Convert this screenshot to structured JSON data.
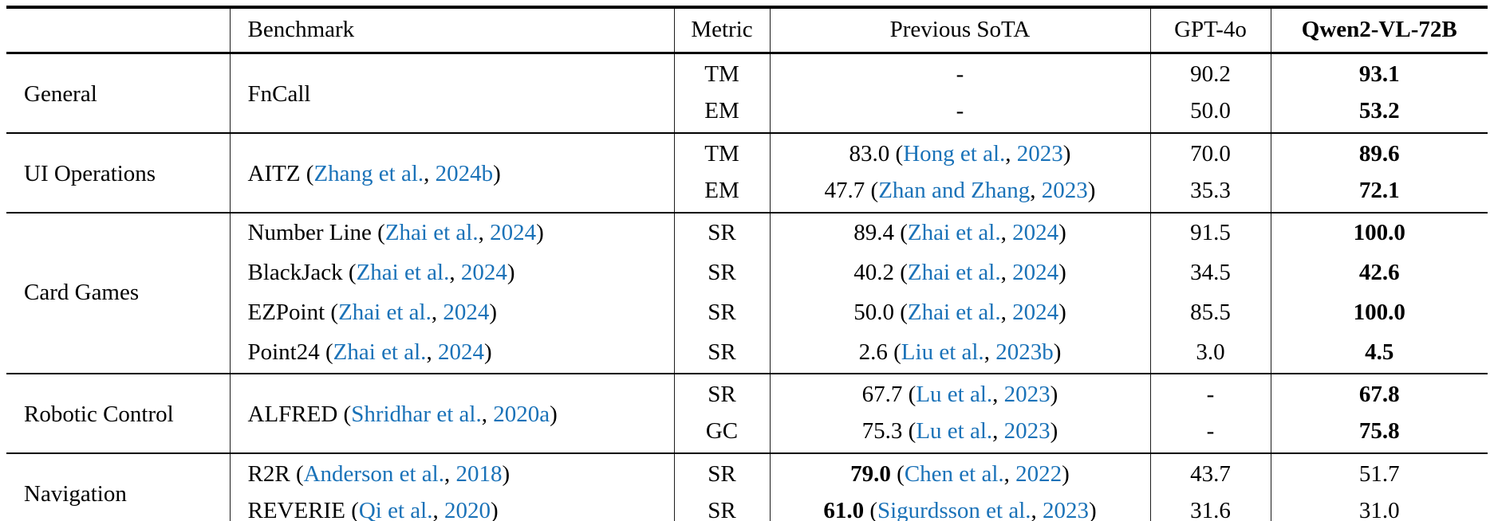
{
  "header": {
    "category": "",
    "benchmark": "Benchmark",
    "metric": "Metric",
    "prev_sota": "Previous SoTA",
    "gpt4o": "GPT-4o",
    "qwen": "Qwen2-VL-72B"
  },
  "colors": {
    "link_blue": "#1a72b8",
    "text": "#000000",
    "rule": "#000000"
  },
  "sections": [
    {
      "category": "General",
      "rows": [
        {
          "bench": {
            "pre": "FnCall"
          },
          "metric": "TM",
          "prev": {
            "pre": "-"
          },
          "gpt": "90.2",
          "qwen": "93.1"
        },
        {
          "metric": "EM",
          "prev": {
            "pre": "-"
          },
          "gpt": "50.0",
          "qwen": "53.2"
        }
      ]
    },
    {
      "category": "UI Operations",
      "rows": [
        {
          "bench": {
            "pre": "AITZ ",
            "open": "(",
            "authors": "Zhang et al.",
            "sep": ", ",
            "year": "2024b",
            "close": ")"
          },
          "metric": "TM",
          "prev": {
            "pre": "83.0 ",
            "open": "(",
            "authors": "Hong et al.",
            "sep": ", ",
            "year": "2023",
            "close": ")"
          },
          "gpt": "70.0",
          "qwen": "89.6"
        },
        {
          "metric": "EM",
          "prev": {
            "pre": "47.7 ",
            "open": "(",
            "authors": "Zhan and Zhang",
            "sep": ", ",
            "year": "2023",
            "close": ")"
          },
          "gpt": "35.3",
          "qwen": "72.1"
        }
      ]
    },
    {
      "category": "Card Games",
      "rows": [
        {
          "bench": {
            "pre": "Number Line ",
            "open": "(",
            "authors": "Zhai et al.",
            "sep": ", ",
            "year": "2024",
            "close": ")"
          },
          "metric": "SR",
          "prev": {
            "pre": "89.4 ",
            "open": "(",
            "authors": "Zhai et al.",
            "sep": ", ",
            "year": "2024",
            "close": ")"
          },
          "gpt": "91.5",
          "qwen": "100.0"
        },
        {
          "bench": {
            "pre": "BlackJack ",
            "open": "(",
            "authors": "Zhai et al.",
            "sep": ", ",
            "year": "2024",
            "close": ")"
          },
          "metric": "SR",
          "prev": {
            "pre": "40.2 ",
            "open": "(",
            "authors": "Zhai et al.",
            "sep": ", ",
            "year": "2024",
            "close": ")"
          },
          "gpt": "34.5",
          "qwen": "42.6"
        },
        {
          "bench": {
            "pre": "EZPoint ",
            "open": "(",
            "authors": "Zhai et al.",
            "sep": ", ",
            "year": "2024",
            "close": ")"
          },
          "metric": "SR",
          "prev": {
            "pre": "50.0 ",
            "open": "(",
            "authors": "Zhai et al.",
            "sep": ", ",
            "year": "2024",
            "close": ")"
          },
          "gpt": "85.5",
          "qwen": "100.0"
        },
        {
          "bench": {
            "pre": "Point24 ",
            "open": "(",
            "authors": "Zhai et al.",
            "sep": ", ",
            "year": "2024",
            "close": ")"
          },
          "metric": "SR",
          "prev": {
            "pre": "2.6 ",
            "open": "(",
            "authors": "Liu et al.",
            "sep": ", ",
            "year": "2023b",
            "close": ")"
          },
          "gpt": "3.0",
          "qwen": "4.5"
        }
      ]
    },
    {
      "category": "Robotic Control",
      "rows": [
        {
          "bench": {
            "pre": "ALFRED ",
            "open": "(",
            "authors": "Shridhar et al.",
            "sep": ", ",
            "year": "2020a",
            "close": ")"
          },
          "metric": "SR",
          "prev": {
            "pre": "67.7 ",
            "open": "(",
            "authors": "Lu et al.",
            "sep": ", ",
            "year": "2023",
            "close": ")"
          },
          "gpt": "-",
          "qwen": "67.8"
        },
        {
          "metric": "GC",
          "prev": {
            "pre": "75.3 ",
            "open": "(",
            "authors": "Lu et al.",
            "sep": ", ",
            "year": "2023",
            "close": ")"
          },
          "gpt": "-",
          "qwen": "75.8"
        }
      ]
    },
    {
      "category": "Navigation",
      "rows": [
        {
          "bench": {
            "pre": "R2R ",
            "open": "(",
            "authors": "Anderson et al.",
            "sep": ", ",
            "year": "2018",
            "close": ")"
          },
          "metric": "SR",
          "prev": {
            "pre": "79.0 ",
            "open": "(",
            "authors": "Chen et al.",
            "sep": ", ",
            "year": "2022",
            "close": ")"
          },
          "gpt": "43.7",
          "qwen": "51.7"
        },
        {
          "bench": {
            "pre": "REVERIE ",
            "open": "(",
            "authors": "Qi et al.",
            "sep": ", ",
            "year": "2020",
            "close": ")"
          },
          "metric": "SR",
          "prev": {
            "pre": "61.0 ",
            "open": "(",
            "authors": "Sigurdsson et al.",
            "sep": ", ",
            "year": "2023",
            "close": ")"
          },
          "gpt": "31.6",
          "qwen": "31.0"
        }
      ]
    }
  ]
}
